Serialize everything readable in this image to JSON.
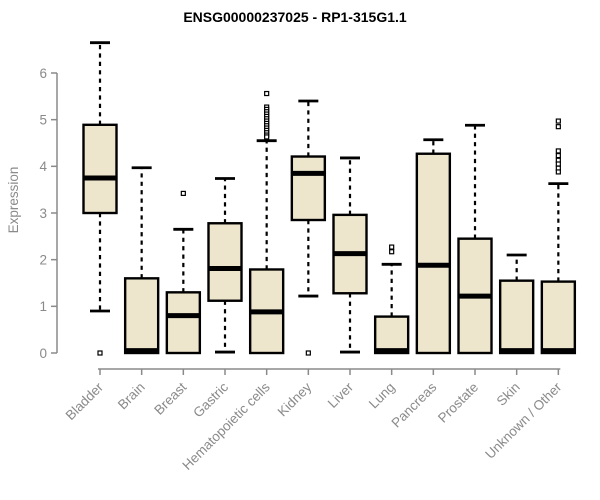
{
  "chart_data": {
    "type": "boxplot",
    "title": "ENSG00000237025 - RP1-315G1.1",
    "ylabel": "Expression",
    "xlabel": "",
    "yticks": [
      0,
      1,
      2,
      3,
      4,
      5,
      6
    ],
    "ylim": [
      0,
      6.8
    ],
    "grid": false,
    "legend": false,
    "categories": [
      "Bladder",
      "Brain",
      "Breast",
      "Gastric",
      "Hematopoietic cells",
      "Kidney",
      "Liver",
      "Lung",
      "Pancreas",
      "Prostate",
      "Skin",
      "Unknown / Other"
    ],
    "boxes": [
      {
        "category": "Bladder",
        "whisker_low": 0.9,
        "q1": 3.0,
        "median": 3.75,
        "q3": 4.89,
        "whisker_high": 6.65,
        "outliers": [
          0.0
        ]
      },
      {
        "category": "Brain",
        "whisker_low": 0.0,
        "q1": 0.0,
        "median": 0.05,
        "q3": 1.6,
        "whisker_high": 3.97,
        "outliers": []
      },
      {
        "category": "Breast",
        "whisker_low": 0.0,
        "q1": 0.0,
        "median": 0.8,
        "q3": 1.3,
        "whisker_high": 2.65,
        "outliers": [
          3.42
        ]
      },
      {
        "category": "Gastric",
        "whisker_low": 0.02,
        "q1": 1.12,
        "median": 1.81,
        "q3": 2.78,
        "whisker_high": 3.74,
        "outliers": []
      },
      {
        "category": "Hematopoietic cells",
        "whisker_low": 0.0,
        "q1": 0.0,
        "median": 0.88,
        "q3": 1.79,
        "whisker_high": 4.55,
        "outliers": [
          5.56,
          5.27,
          5.22,
          5.17,
          5.12,
          5.07,
          5.02,
          4.97,
          4.92,
          4.87,
          4.82,
          4.77,
          4.72,
          4.67,
          4.63
        ]
      },
      {
        "category": "Kidney",
        "whisker_low": 1.22,
        "q1": 2.85,
        "median": 3.85,
        "q3": 4.21,
        "whisker_high": 5.4,
        "outliers": [
          0.0
        ]
      },
      {
        "category": "Liver",
        "whisker_low": 0.02,
        "q1": 1.28,
        "median": 2.13,
        "q3": 2.96,
        "whisker_high": 4.18,
        "outliers": []
      },
      {
        "category": "Lung",
        "whisker_low": 0.0,
        "q1": 0.0,
        "median": 0.05,
        "q3": 0.78,
        "whisker_high": 1.9,
        "outliers": [
          2.27,
          2.17
        ]
      },
      {
        "category": "Pancreas",
        "whisker_low": 0.0,
        "q1": 0.0,
        "median": 1.88,
        "q3": 4.27,
        "whisker_high": 4.57,
        "outliers": []
      },
      {
        "category": "Prostate",
        "whisker_low": 0.0,
        "q1": 0.0,
        "median": 1.22,
        "q3": 2.45,
        "whisker_high": 4.88,
        "outliers": []
      },
      {
        "category": "Skin",
        "whisker_low": 0.0,
        "q1": 0.0,
        "median": 0.05,
        "q3": 1.55,
        "whisker_high": 2.1,
        "outliers": []
      },
      {
        "category": "Unknown / Other",
        "whisker_low": 0.0,
        "q1": 0.0,
        "median": 0.05,
        "q3": 1.53,
        "whisker_high": 3.63,
        "outliers": [
          4.97,
          4.85,
          4.33,
          4.23,
          4.13,
          4.05,
          3.96,
          3.88
        ]
      }
    ],
    "colors": {
      "background": "#ffffff",
      "box_fill": "#EDE6CD",
      "box_stroke": "#000000",
      "median": "#000000",
      "whisker": "#000000",
      "outlier_stroke": "#000000",
      "outlier_fill": "#ffffff",
      "axis": "#8a8a8a",
      "tick_label": "#8a8a8a",
      "title": "#000000"
    }
  }
}
